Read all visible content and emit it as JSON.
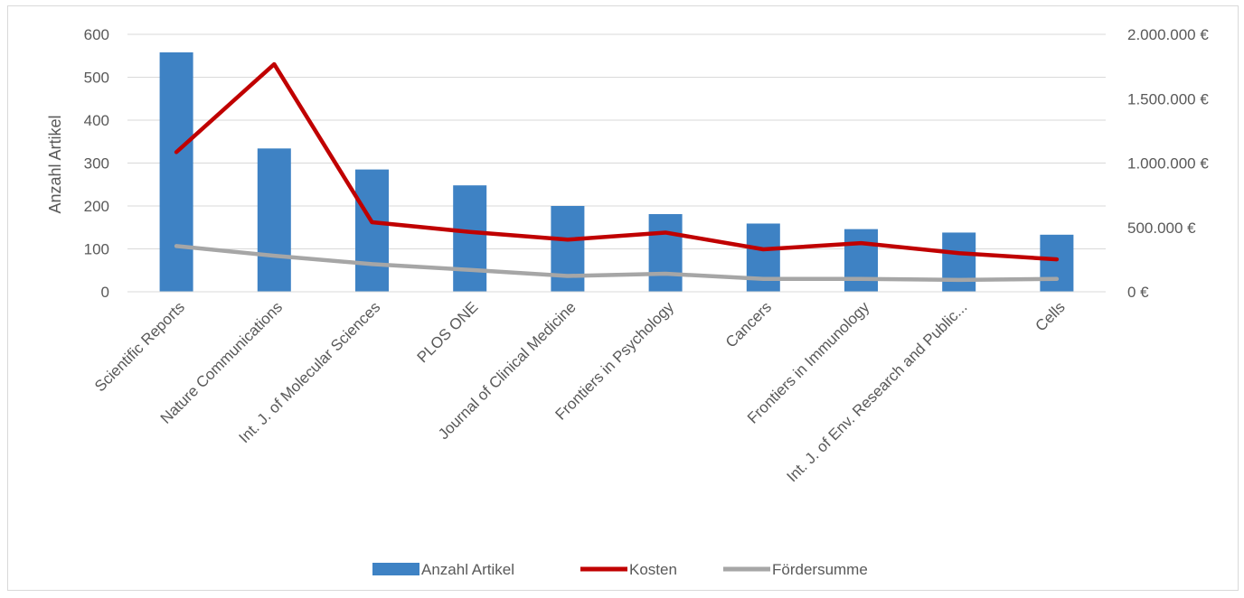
{
  "chart_data": {
    "type": "bar",
    "title": "",
    "categories": [
      "Scientific Reports",
      "Nature Communications",
      "Int. J. of Molecular Sciences",
      "PLOS ONE",
      "Journal of Clinical Medicine",
      "Frontiers in Psychology",
      "Cancers",
      "Frontiers in Immunology",
      "Int. J. of Env. Research and Public...",
      "Cells"
    ],
    "series": [
      {
        "name": "Anzahl Artikel",
        "type": "bar",
        "axis": "left",
        "color": "#3e82c4",
        "values": [
          558,
          334,
          285,
          248,
          200,
          181,
          159,
          146,
          138,
          133
        ]
      },
      {
        "name": "Kosten",
        "type": "line",
        "axis": "right",
        "color": "#c00000",
        "values": [
          1085000,
          1768000,
          540000,
          465000,
          405000,
          460000,
          330000,
          378000,
          300000,
          252000
        ]
      },
      {
        "name": "Fördersumme",
        "type": "line",
        "axis": "right",
        "color": "#a6a6a6",
        "values": [
          355000,
          280000,
          215000,
          170000,
          123000,
          140000,
          100000,
          100000,
          92000,
          100000
        ]
      }
    ],
    "ylabel": "Anzahl Artikel",
    "ylim": [
      0,
      600
    ],
    "yticks": [
      "0",
      "100",
      "200",
      "300",
      "400",
      "500",
      "600"
    ],
    "y2lim": [
      0,
      2000000
    ],
    "y2ticks": [
      "0 €",
      "500.000 €",
      "1.000.000 €",
      "1.500.000 €",
      "2.000.000 €"
    ],
    "grid": true,
    "legend_position": "bottom"
  }
}
